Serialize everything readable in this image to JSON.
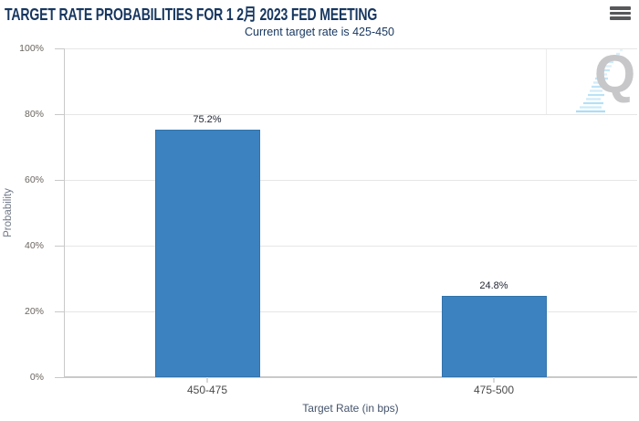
{
  "header": {
    "title": "TARGET RATE PROBABILITIES FOR 1 2月 2023 FED MEETING",
    "subtitle": "Current target rate is 425-450"
  },
  "menu": {
    "icon": "hamburger-icon"
  },
  "watermark": {
    "letter": "Q"
  },
  "chart_data": {
    "type": "bar",
    "categories": [
      "450-475",
      "475-500"
    ],
    "values": [
      75.2,
      24.8
    ],
    "value_labels": [
      "75.2%",
      "24.8%"
    ],
    "xlabel": "Target Rate (in bps)",
    "ylabel": "Probability",
    "ylim": [
      0,
      100
    ],
    "ytick_step": 20,
    "ytick_labels": [
      "0%",
      "20%",
      "40%",
      "60%",
      "80%",
      "100%"
    ],
    "grid": true,
    "legend": false,
    "bar_color": "#3d82c0",
    "bar_border_color": "#3273ab",
    "title_color": "#16365f",
    "grid_color": "#e6e6e6",
    "axis_color": "#c9c9c9"
  }
}
